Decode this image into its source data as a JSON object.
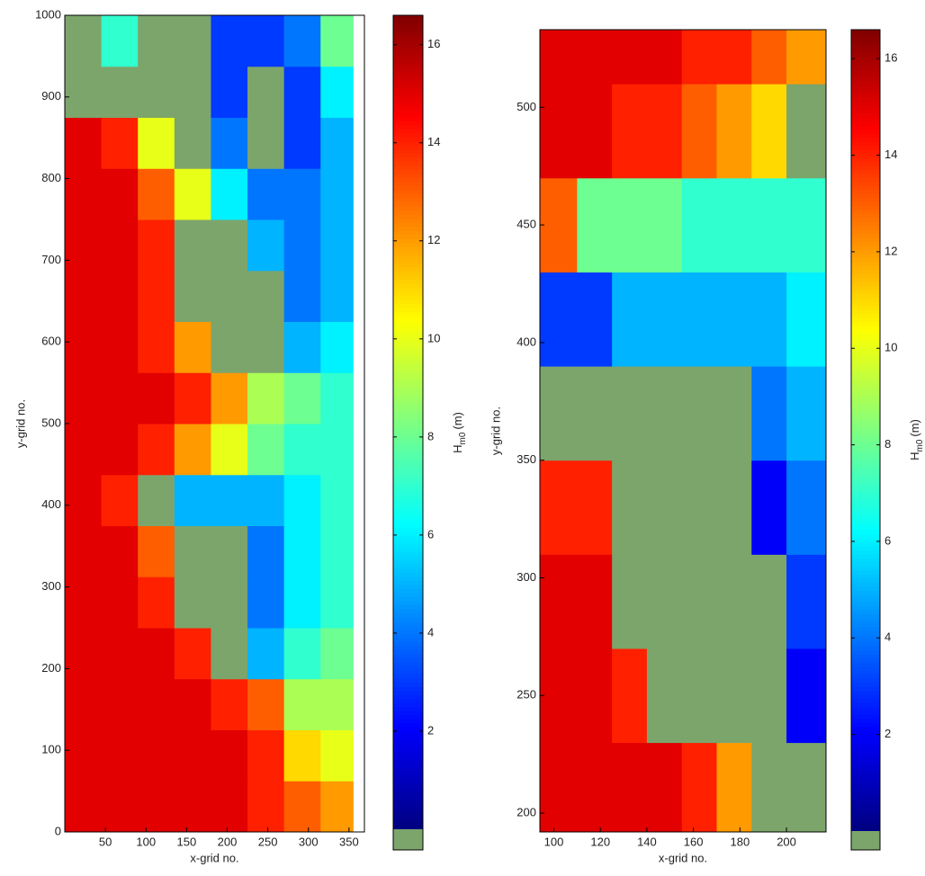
{
  "chart_data": [
    {
      "type": "heatmap",
      "xlabel": "x-grid no.",
      "ylabel": "y-grid no.",
      "xlim": [
        0,
        369
      ],
      "ylim": [
        0,
        1000
      ],
      "xticks": [
        50,
        100,
        150,
        200,
        250,
        300,
        350
      ],
      "yticks": [
        0,
        100,
        200,
        300,
        400,
        500,
        600,
        700,
        800,
        900,
        1000
      ],
      "x_edges": [
        0,
        45,
        90,
        135,
        180,
        225,
        270,
        315,
        355
      ],
      "y_edges": [
        0,
        62.5,
        125,
        187.5,
        250,
        312.5,
        375,
        437.5,
        500,
        562.5,
        625,
        687.5,
        750,
        812.5,
        875,
        937.5,
        1000
      ],
      "values": [
        [
          15,
          15,
          15,
          15,
          15,
          14,
          13,
          12
        ],
        [
          15,
          15,
          15,
          15,
          15,
          14,
          11,
          10
        ],
        [
          15,
          15,
          15,
          15,
          14,
          13,
          9,
          9
        ],
        [
          15,
          15,
          15,
          14,
          null,
          5,
          7,
          8
        ],
        [
          15,
          15,
          14,
          null,
          null,
          4,
          6,
          7
        ],
        [
          15,
          15,
          13,
          null,
          null,
          4,
          6,
          7
        ],
        [
          15,
          14,
          null,
          5,
          5,
          5,
          6,
          7
        ],
        [
          15,
          15,
          14,
          12,
          10,
          8,
          7,
          7
        ],
        [
          15,
          15,
          15,
          14,
          12,
          9,
          8,
          7
        ],
        [
          15,
          15,
          14,
          12,
          null,
          null,
          5,
          6
        ],
        [
          15,
          15,
          14,
          null,
          null,
          null,
          4,
          5
        ],
        [
          15,
          15,
          14,
          null,
          null,
          5,
          4,
          5
        ],
        [
          15,
          15,
          13,
          10,
          6,
          4,
          4,
          5
        ],
        [
          15,
          14,
          10,
          null,
          4,
          null,
          3,
          5
        ],
        [
          null,
          null,
          null,
          null,
          3,
          null,
          3,
          6
        ],
        [
          null,
          7,
          null,
          null,
          3,
          3,
          4,
          8
        ]
      ],
      "land_color": "#7ca56c",
      "colormap": "jet",
      "clim": [
        0,
        16.6
      ],
      "cticks": [
        2,
        4,
        6,
        8,
        10,
        12,
        14,
        16
      ],
      "colorbar_label": {
        "main": "H",
        "sub": "m0",
        "unit": "(m)"
      }
    },
    {
      "type": "heatmap",
      "xlabel": "x-grid no.",
      "ylabel": "y-grid no.",
      "xlim": [
        94,
        217
      ],
      "ylim": [
        192,
        533
      ],
      "xticks": [
        100,
        120,
        140,
        160,
        180,
        200
      ],
      "yticks": [
        200,
        250,
        300,
        350,
        400,
        450,
        500
      ],
      "x_edges": [
        94,
        110,
        125,
        140,
        155,
        170,
        185,
        200,
        217
      ],
      "y_edges": [
        192,
        230,
        270,
        310,
        350,
        390,
        430,
        470,
        510,
        533
      ],
      "values": [
        [
          15,
          15,
          15,
          15,
          14,
          12,
          null,
          null
        ],
        [
          15,
          15,
          14,
          null,
          null,
          null,
          null,
          2
        ],
        [
          15,
          15,
          null,
          null,
          null,
          null,
          null,
          3
        ],
        [
          14,
          14,
          null,
          null,
          null,
          null,
          2,
          4
        ],
        [
          null,
          null,
          null,
          null,
          null,
          null,
          4,
          5
        ],
        [
          3,
          3,
          5,
          5,
          5,
          5,
          5,
          6
        ],
        [
          13,
          8,
          8,
          8,
          7,
          7,
          7,
          7
        ],
        [
          15,
          15,
          14,
          14,
          13,
          12,
          11,
          null
        ],
        [
          15,
          15,
          15,
          15,
          14,
          14,
          13,
          12
        ]
      ],
      "land_color": "#7ca56c",
      "colormap": "jet",
      "clim": [
        0,
        16.6
      ],
      "cticks": [
        2,
        4,
        6,
        8,
        10,
        12,
        14,
        16
      ],
      "colorbar_label": {
        "main": "H",
        "sub": "m0",
        "unit": "(m)"
      }
    }
  ]
}
